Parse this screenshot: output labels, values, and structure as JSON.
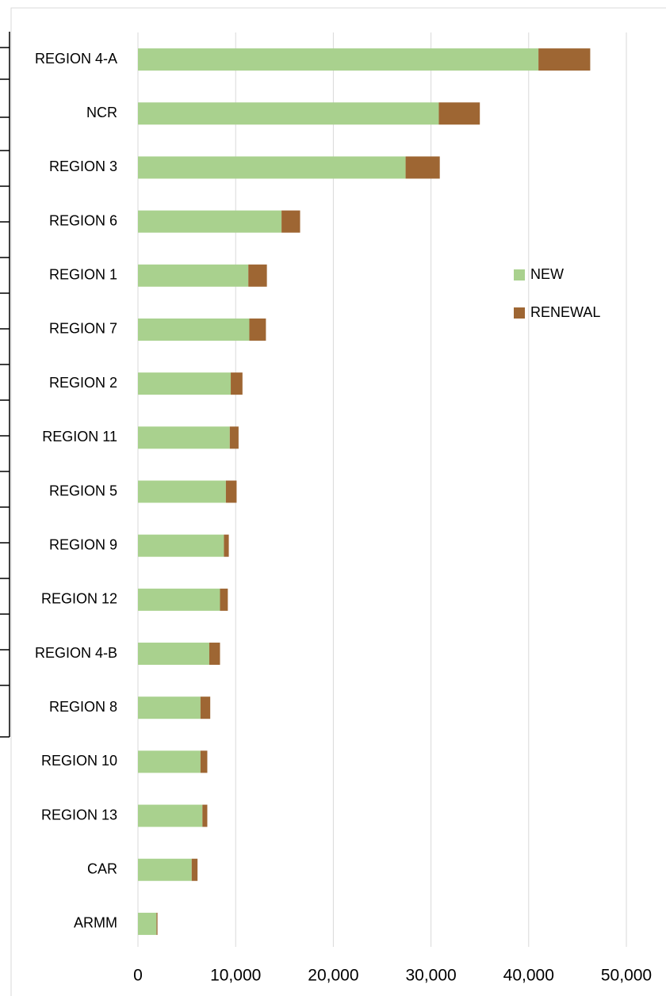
{
  "chart_data": {
    "type": "stacked_barh",
    "categories": [
      "REGION 4-A",
      "NCR",
      "REGION 3",
      "REGION 6",
      "REGION 1",
      "REGION 7",
      "REGION 2",
      "REGION 11",
      "REGION 5",
      "REGION 9",
      "REGION 12",
      "REGION 4-B",
      "REGION 8",
      "REGION 10",
      "REGION 13",
      "CAR",
      "ARMM"
    ],
    "series": [
      {
        "name": "NEW",
        "color": "#a9d18e",
        "values": [
          41000,
          30800,
          27400,
          14700,
          11300,
          11400,
          9500,
          9400,
          9000,
          8800,
          8400,
          7300,
          6400,
          6400,
          6600,
          5500,
          1900
        ]
      },
      {
        "name": "RENEWAL",
        "color": "#9e6633",
        "values": [
          5300,
          4200,
          3500,
          1900,
          1900,
          1700,
          1200,
          900,
          1100,
          500,
          800,
          1100,
          1000,
          700,
          500,
          600,
          100
        ]
      }
    ],
    "xlim": [
      0,
      50000
    ],
    "xticks": [
      0,
      {
        "value": 10000,
        "label": "10,000"
      },
      {
        "value": 20000,
        "label": "20,000"
      },
      {
        "value": 30000,
        "label": "30,000"
      },
      {
        "value": 40000,
        "label": "40,000"
      },
      {
        "value": 50000,
        "label": "50,000"
      }
    ],
    "grid": true,
    "legend": "right"
  }
}
